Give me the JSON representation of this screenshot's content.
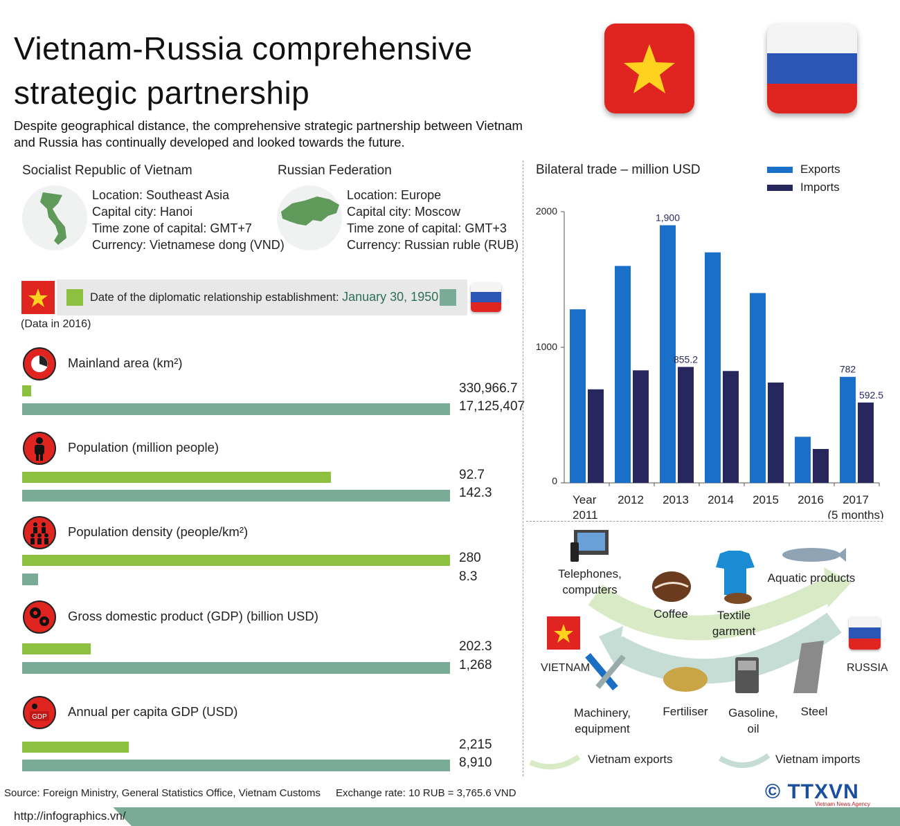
{
  "title": "Vietnam-Russia comprehensive strategic partnership",
  "subtitle": "Despite geographical distance, the comprehensive strategic partnership between Vietnam and Russia has continually developed and looked towards the future.",
  "colors": {
    "vietnam_bar": "#8dc03f",
    "russia_bar": "#7aab97",
    "exports": "#1a70c8",
    "imports": "#27275e",
    "flag_red": "#e02520",
    "flag_star": "#ffd21f"
  },
  "vietnam": {
    "name": "Socialist Republic of Vietnam",
    "location": "Location: Southeast Asia",
    "capital": "Capital city: Hanoi",
    "timezone": "Time zone of capital: GMT+7",
    "currency": "Currency: Vietnamese dong (VND)",
    "map_label": "Vietnam map icon"
  },
  "russia": {
    "name": "Russian Federation",
    "location": "Location: Europe",
    "capital": "Capital city: Moscow",
    "timezone": "Time zone of capital: GMT+3",
    "currency": "Currency: Russian ruble (RUB)",
    "map_label": "Russia map icon"
  },
  "diplomatic": {
    "label": "Date of the diplomatic relationship establishment:",
    "date": "January 30, 1950"
  },
  "data_year": "(Data in 2016)",
  "stats": [
    {
      "label": "Mainland area (km²)",
      "icon": "pie-icon",
      "vn_value": "330,966.7",
      "ru_value": "17,125,407",
      "vn_frac": 0.0193,
      "ru_frac": 1.0
    },
    {
      "label": "Population (million people)",
      "icon": "person-icon",
      "vn_value": "92.7",
      "ru_value": "142.3",
      "vn_frac": 0.7224,
      "ru_frac": 1.0
    },
    {
      "label": "Population density (people/km²)",
      "icon": "people-icon",
      "vn_value": "280",
      "ru_value": "8.3",
      "vn_frac": 1.0,
      "ru_frac": 0.037
    },
    {
      "label": "Gross domestic product (GDP) (billion USD)",
      "icon": "gears-icon",
      "vn_value": "202.3",
      "ru_value": "1,268",
      "vn_frac": 0.1595,
      "ru_frac": 1.0
    },
    {
      "label": "Annual per capita GDP (USD)",
      "icon": "gdp-icon",
      "vn_value": "2,215",
      "ru_value": "8,910",
      "vn_frac": 0.2486,
      "ru_frac": 1.0
    }
  ],
  "chart_data": {
    "type": "bar",
    "title": "Bilateral trade – million USD",
    "categories": [
      "Year\n2011",
      "2012",
      "2013",
      "2014",
      "2015",
      "2016",
      "2017\n(5 months)"
    ],
    "series": [
      {
        "name": "Exports",
        "values": [
          1280,
          1600,
          1900,
          1700,
          1400,
          340,
          782
        ]
      },
      {
        "name": "Imports",
        "values": [
          690,
          830,
          855.2,
          825,
          740,
          250,
          592.5
        ]
      }
    ],
    "data_labels": [
      {
        "series": "Exports",
        "index": 2,
        "text": "1,900"
      },
      {
        "series": "Imports",
        "index": 2,
        "text": "855.2"
      },
      {
        "series": "Exports",
        "index": 6,
        "text": "782"
      },
      {
        "series": "Imports",
        "index": 6,
        "text": "592.5"
      }
    ],
    "yticks": [
      "0",
      "1000",
      "2000"
    ],
    "ylim": [
      0,
      2000
    ],
    "legend_position": "top-right",
    "grid": false
  },
  "trade_goods": {
    "vietnam_label": "VIETNAM",
    "russia_label": "RUSSIA",
    "exports": [
      "Telephones,\ncomputers",
      "Coffee",
      "Textile\ngarment",
      "Aquatic products"
    ],
    "imports": [
      "Machinery,\nequipment",
      "Fertiliser",
      "Gasoline,\noil",
      "Steel"
    ],
    "exports_legend": "Vietnam exports",
    "imports_legend": "Vietnam imports"
  },
  "footer": {
    "source": "Source: Foreign Ministry, General Statistics Office, Vietnam Customs",
    "exchange_rate": "Exchange rate: 10 RUB = 3,765.6 VND",
    "url": "http://infographics.vn/",
    "logo": "© TTXVN",
    "logo_sub": "Vietnam News Agency"
  }
}
